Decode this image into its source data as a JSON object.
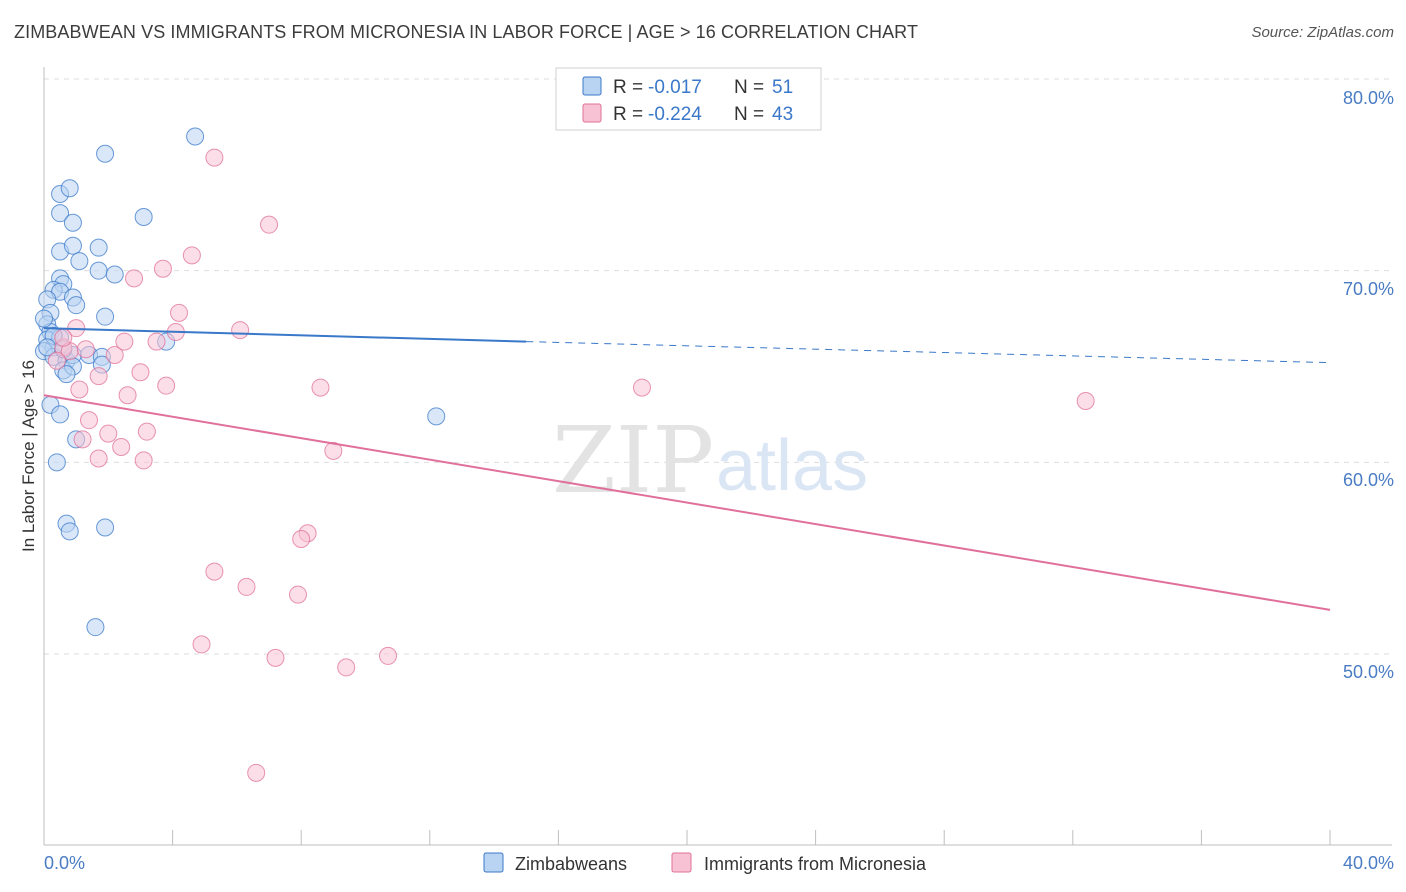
{
  "title": "ZIMBABWEAN VS IMMIGRANTS FROM MICRONESIA IN LABOR FORCE | AGE > 16 CORRELATION CHART",
  "source": "Source: ZipAtlas.com",
  "watermark": {
    "part1": "ZIP",
    "part2": "atlas"
  },
  "colors": {
    "blue": "#3a78c9",
    "blue_fill": "#b9d3f3",
    "pink": "#e0709a",
    "pink_fill": "#f7c3d4",
    "tick_text": "#4a7cc4",
    "grid": "#dddddd"
  },
  "stats_legend": [
    {
      "r_label": "R =",
      "r_value": "-0.017",
      "n_label": "N =",
      "n_value": "51"
    },
    {
      "r_label": "R =",
      "r_value": "-0.224",
      "n_label": "N =",
      "n_value": "43"
    }
  ],
  "chart_data": {
    "type": "scatter",
    "title": "ZIMBABWEAN VS IMMIGRANTS FROM MICRONESIA IN LABOR FORCE | AGE > 16 CORRELATION CHART",
    "xlabel": "",
    "ylabel": "In Labor Force | Age > 16",
    "xlim": [
      0,
      40
    ],
    "ylim": [
      41.5,
      81.5
    ],
    "x_tick_labels": [
      "0.0%",
      "40.0%"
    ],
    "y_ticks": [
      50,
      60,
      70,
      80
    ],
    "y_tick_labels": [
      "50.0%",
      "60.0%",
      "70.0%",
      "80.0%"
    ],
    "grid": true,
    "legend_position": "bottom",
    "series": [
      {
        "name": "Zimbabweans",
        "r": -0.017,
        "n": 51,
        "trend": {
          "x0": 0,
          "y0": 67.0,
          "x1": 15.0,
          "y1": 66.3,
          "dash_x1": 40,
          "dash_y1": 65.2
        },
        "points": [
          [
            0.5,
            74.0
          ],
          [
            0.8,
            74.3
          ],
          [
            0.5,
            73.0
          ],
          [
            0.9,
            72.5
          ],
          [
            0.5,
            71.0
          ],
          [
            0.9,
            71.3
          ],
          [
            1.1,
            70.5
          ],
          [
            1.7,
            71.2
          ],
          [
            1.7,
            70.0
          ],
          [
            2.2,
            69.8
          ],
          [
            0.5,
            69.6
          ],
          [
            0.6,
            69.3
          ],
          [
            0.3,
            69.0
          ],
          [
            0.5,
            68.9
          ],
          [
            0.1,
            68.5
          ],
          [
            0.9,
            68.6
          ],
          [
            1.0,
            68.2
          ],
          [
            0.2,
            67.8
          ],
          [
            1.9,
            67.6
          ],
          [
            0.1,
            67.2
          ],
          [
            0.2,
            66.8
          ],
          [
            0.1,
            66.4
          ],
          [
            0.3,
            66.0
          ],
          [
            0.0,
            65.8
          ],
          [
            0.3,
            65.5
          ],
          [
            0.7,
            65.3
          ],
          [
            0.9,
            65.6
          ],
          [
            1.4,
            65.6
          ],
          [
            1.8,
            65.5
          ],
          [
            0.6,
            64.8
          ],
          [
            0.9,
            65.0
          ],
          [
            1.8,
            65.1
          ],
          [
            3.8,
            66.3
          ],
          [
            4.7,
            77.0
          ],
          [
            1.9,
            76.1
          ],
          [
            3.1,
            72.8
          ],
          [
            0.2,
            63.0
          ],
          [
            0.5,
            62.5
          ],
          [
            1.0,
            61.2
          ],
          [
            0.4,
            60.0
          ],
          [
            0.7,
            56.8
          ],
          [
            0.8,
            56.4
          ],
          [
            1.9,
            56.6
          ],
          [
            1.6,
            51.4
          ],
          [
            12.2,
            62.4
          ],
          [
            0.5,
            66.5
          ],
          [
            0.7,
            64.6
          ],
          [
            0.0,
            67.5
          ],
          [
            0.3,
            66.6
          ],
          [
            0.1,
            66.0
          ],
          [
            0.6,
            65.9
          ]
        ]
      },
      {
        "name": "Immigrants from Micronesia",
        "r": -0.224,
        "n": 43,
        "trend": {
          "x0": 0,
          "y0": 63.5,
          "x1": 40,
          "y1": 52.3
        },
        "points": [
          [
            5.3,
            75.9
          ],
          [
            7.0,
            72.4
          ],
          [
            4.6,
            70.8
          ],
          [
            3.7,
            70.1
          ],
          [
            2.8,
            69.6
          ],
          [
            4.2,
            67.8
          ],
          [
            6.1,
            66.9
          ],
          [
            4.1,
            66.8
          ],
          [
            3.5,
            66.3
          ],
          [
            1.0,
            67.0
          ],
          [
            0.6,
            66.0
          ],
          [
            0.8,
            65.8
          ],
          [
            2.2,
            65.6
          ],
          [
            2.5,
            66.3
          ],
          [
            0.4,
            65.3
          ],
          [
            3.0,
            64.7
          ],
          [
            1.7,
            64.5
          ],
          [
            3.8,
            64.0
          ],
          [
            1.1,
            63.8
          ],
          [
            2.6,
            63.5
          ],
          [
            8.6,
            63.9
          ],
          [
            18.6,
            63.9
          ],
          [
            32.4,
            63.2
          ],
          [
            1.4,
            62.2
          ],
          [
            3.2,
            61.6
          ],
          [
            1.2,
            61.2
          ],
          [
            2.0,
            61.5
          ],
          [
            2.4,
            60.8
          ],
          [
            3.1,
            60.1
          ],
          [
            1.7,
            60.2
          ],
          [
            9.0,
            60.6
          ],
          [
            8.2,
            56.3
          ],
          [
            8.0,
            56.0
          ],
          [
            5.3,
            54.3
          ],
          [
            6.3,
            53.5
          ],
          [
            7.9,
            53.1
          ],
          [
            4.9,
            50.5
          ],
          [
            7.2,
            49.8
          ],
          [
            10.7,
            49.9
          ],
          [
            9.4,
            49.3
          ],
          [
            6.6,
            43.8
          ],
          [
            0.6,
            66.5
          ],
          [
            1.3,
            65.9
          ]
        ]
      }
    ]
  },
  "bottom_legend": [
    "Zimbabweans",
    "Immigrants from Micronesia"
  ]
}
